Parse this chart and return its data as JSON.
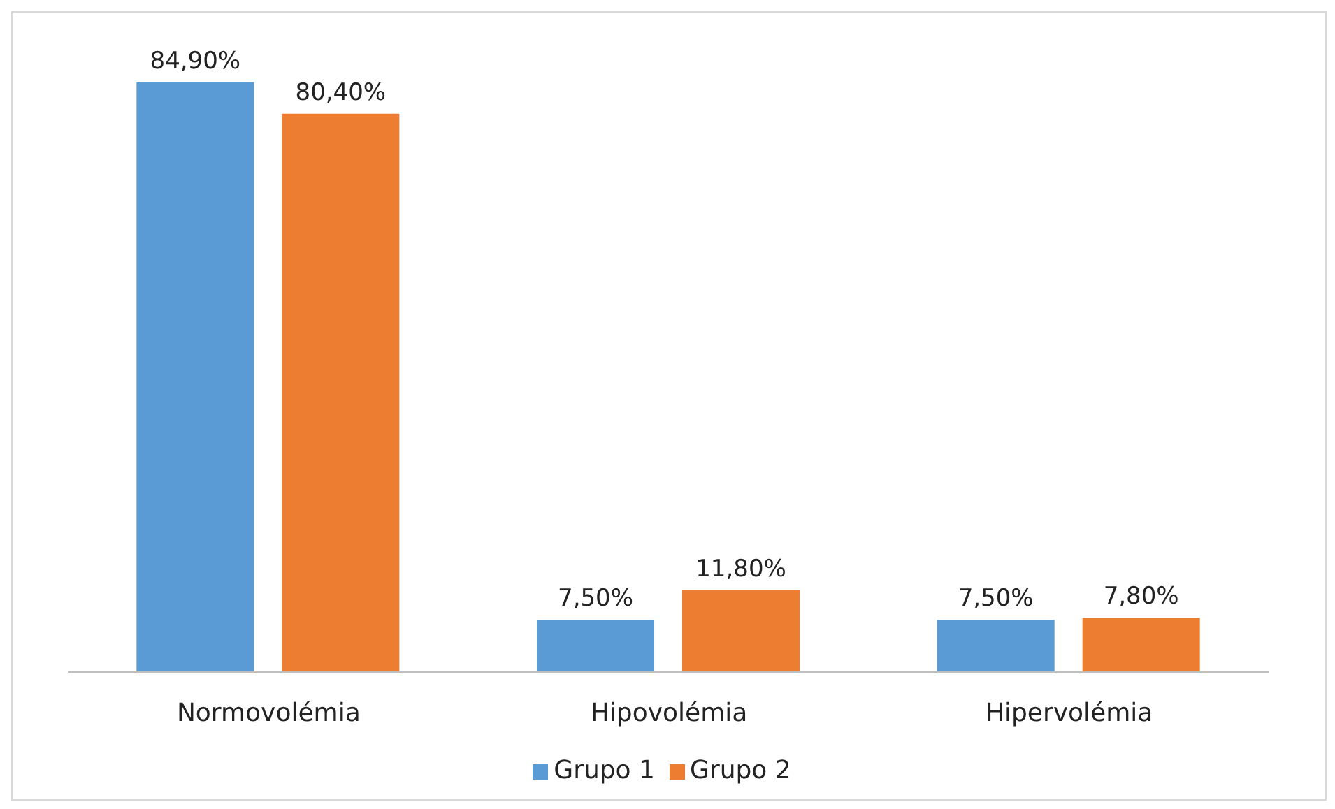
{
  "chart_data": {
    "type": "bar",
    "categories": [
      "Normovolémia",
      "Hipovolémia",
      "Hipervolémia"
    ],
    "series": [
      {
        "name": "Grupo 1",
        "color": "#5b9bd5",
        "values": [
          84.9,
          7.5,
          7.5
        ],
        "value_labels": [
          "84,90%",
          "7,50%",
          "7,50%"
        ]
      },
      {
        "name": "Grupo 2",
        "color": "#ed7d31",
        "values": [
          80.4,
          11.8,
          7.8
        ],
        "value_labels": [
          "80,40%",
          "11,80%",
          "7,80%"
        ]
      }
    ],
    "legend": "bottom"
  }
}
